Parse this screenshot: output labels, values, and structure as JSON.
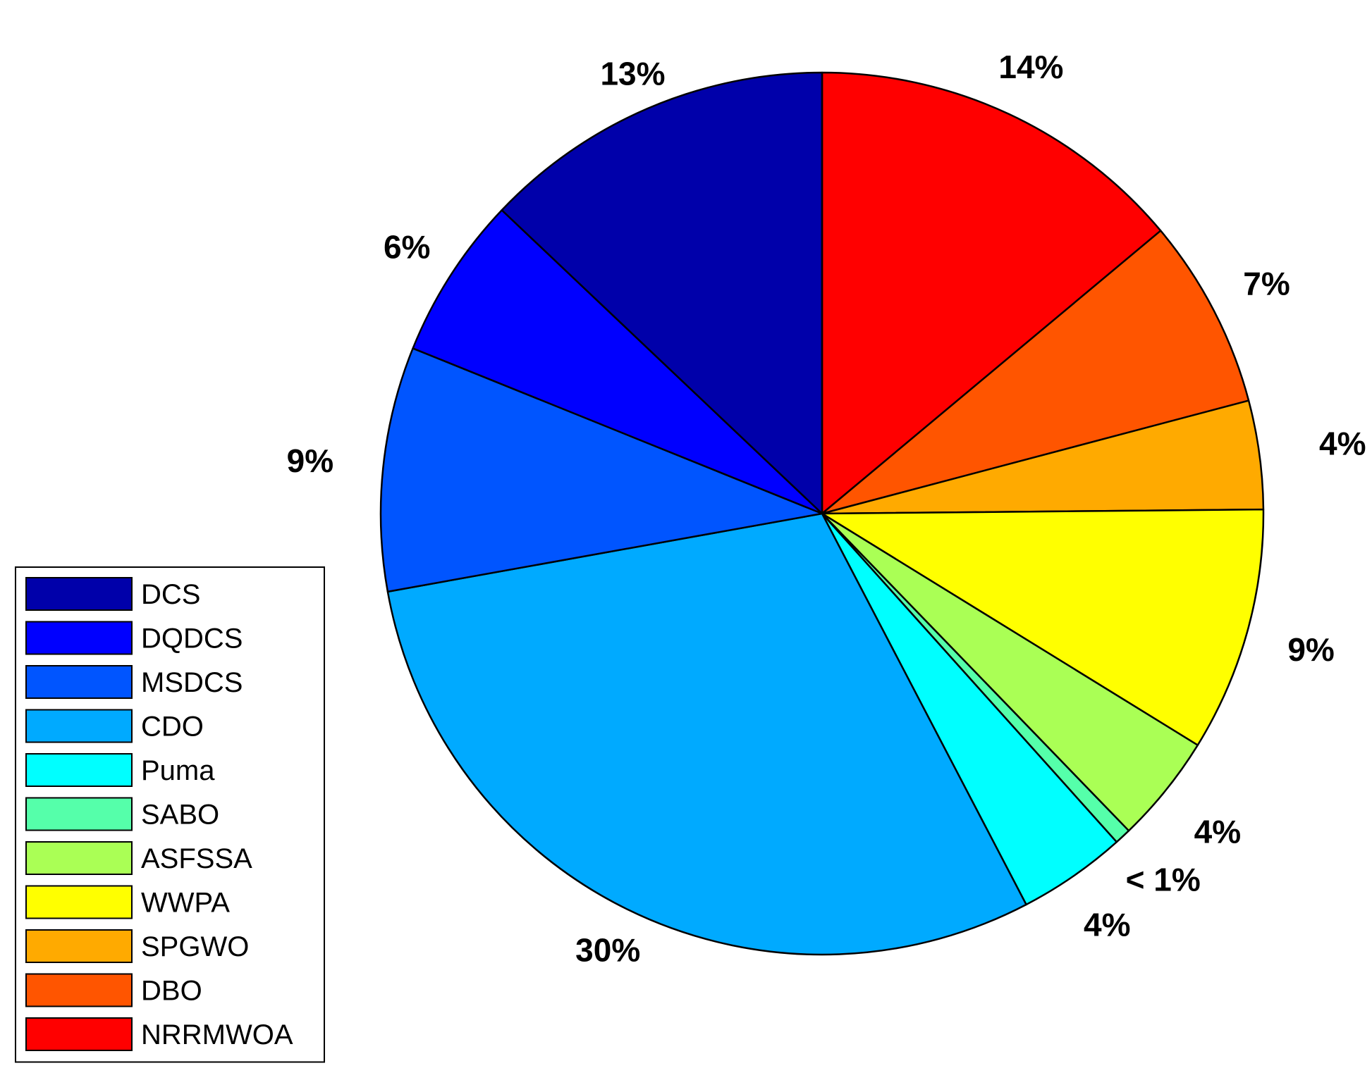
{
  "chart_data": {
    "type": "pie",
    "direction": "clockwise",
    "start_angle_deg": 0,
    "start_reference": "12 o'clock",
    "slices": [
      {
        "name": "NRRMWOA",
        "value": 14,
        "label": "14%",
        "color": "#FF0000"
      },
      {
        "name": "DBO",
        "value": 7,
        "label": "7%",
        "color": "#FF5500"
      },
      {
        "name": "SPGWO",
        "value": 4,
        "label": "4%",
        "color": "#FFAA00"
      },
      {
        "name": "WWPA",
        "value": 9,
        "label": "9%",
        "color": "#FFFF00"
      },
      {
        "name": "ASFSSA",
        "value": 4,
        "label": "4%",
        "color": "#AAFF55"
      },
      {
        "name": "SABO",
        "value": 0.6,
        "label": "< 1%",
        "color": "#55FFAA"
      },
      {
        "name": "Puma",
        "value": 4,
        "label": "4%",
        "color": "#00FFFF"
      },
      {
        "name": "CDO",
        "value": 30,
        "label": "30%",
        "color": "#00AAFF"
      },
      {
        "name": "MSDCS",
        "value": 9,
        "label": "9%",
        "color": "#0055FF"
      },
      {
        "name": "DQDCS",
        "value": 6,
        "label": "6%",
        "color": "#0000FF"
      },
      {
        "name": "DCS",
        "value": 13,
        "label": "13%",
        "color": "#0000AA"
      }
    ],
    "legend": {
      "placement": "bottom-left",
      "entries": [
        "DCS",
        "DQDCS",
        "MSDCS",
        "CDO",
        "Puma",
        "SABO",
        "ASFSSA",
        "WWPA",
        "SPGWO",
        "DBO",
        "NRRMWOA"
      ]
    },
    "title": ""
  }
}
